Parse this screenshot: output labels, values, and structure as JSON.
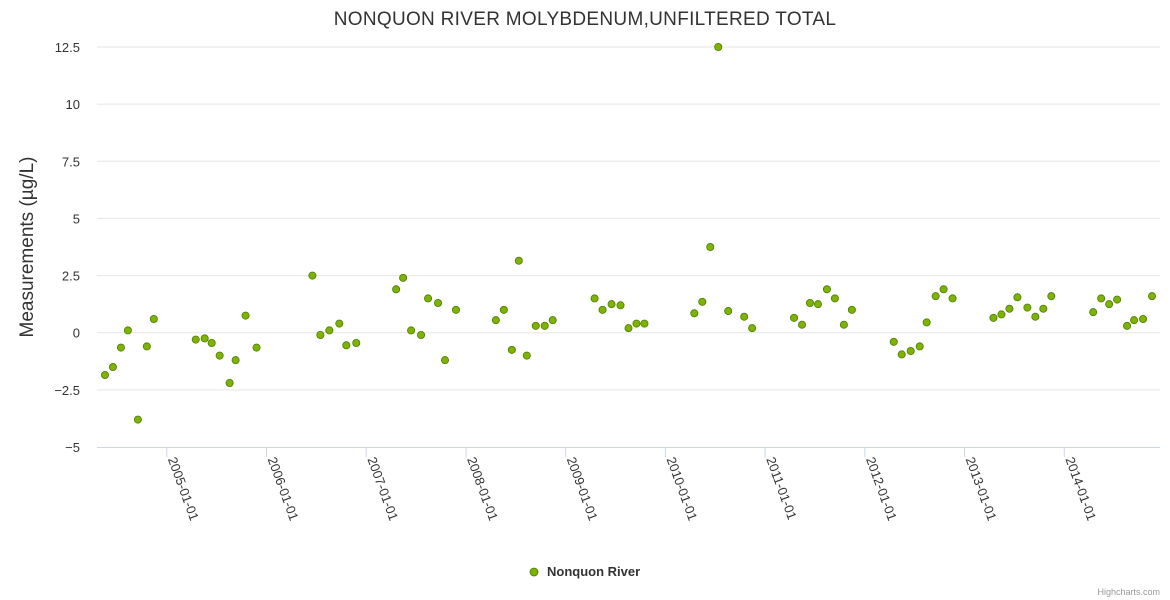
{
  "chart_data": {
    "type": "scatter",
    "title": "NONQUON RIVER MOLYBDENUM,UNFILTERED TOTAL",
    "xlabel": "",
    "ylabel": "Measurements (µg/L)",
    "ylim": [
      -5,
      12.5
    ],
    "yticks": [
      -5,
      -2.5,
      0,
      2.5,
      5,
      7.5,
      10,
      12.5
    ],
    "ytick_labels": [
      "−5",
      "−2.5",
      "0",
      "2.5",
      "5",
      "7.5",
      "10",
      "12.5"
    ],
    "xlim": [
      2004.3,
      2014.96
    ],
    "xticks": [
      2005,
      2006,
      2007,
      2008,
      2009,
      2010,
      2011,
      2012,
      2013,
      2014
    ],
    "xtick_labels": [
      "2005-01-01",
      "2006-01-01",
      "2007-01-01",
      "2008-01-01",
      "2009-01-01",
      "2010-01-01",
      "2011-01-01",
      "2012-01-01",
      "2013-01-01",
      "2014-01-01"
    ],
    "grid": true,
    "legend_position": "bottom-center",
    "series": [
      {
        "name": "Nonquon River",
        "color": "#7cb305",
        "points": [
          [
            2004.38,
            -1.85
          ],
          [
            2004.46,
            -1.5
          ],
          [
            2004.54,
            -0.65
          ],
          [
            2004.61,
            0.1
          ],
          [
            2004.71,
            -3.8
          ],
          [
            2004.8,
            -0.6
          ],
          [
            2004.87,
            0.6
          ],
          [
            2005.29,
            -0.3
          ],
          [
            2005.38,
            -0.25
          ],
          [
            2005.45,
            -0.45
          ],
          [
            2005.53,
            -1.0
          ],
          [
            2005.63,
            -2.2
          ],
          [
            2005.69,
            -1.2
          ],
          [
            2005.79,
            0.75
          ],
          [
            2005.9,
            -0.65
          ],
          [
            2006.46,
            2.5
          ],
          [
            2006.54,
            -0.1
          ],
          [
            2006.63,
            0.1
          ],
          [
            2006.73,
            0.4
          ],
          [
            2006.8,
            -0.55
          ],
          [
            2006.9,
            -0.45
          ],
          [
            2007.3,
            1.9
          ],
          [
            2007.37,
            2.4
          ],
          [
            2007.45,
            0.1
          ],
          [
            2007.55,
            -0.1
          ],
          [
            2007.62,
            1.5
          ],
          [
            2007.72,
            1.3
          ],
          [
            2007.79,
            -1.2
          ],
          [
            2007.9,
            1.0
          ],
          [
            2008.3,
            0.55
          ],
          [
            2008.38,
            1.0
          ],
          [
            2008.46,
            -0.75
          ],
          [
            2008.53,
            3.15
          ],
          [
            2008.61,
            -1.0
          ],
          [
            2008.7,
            0.3
          ],
          [
            2008.79,
            0.3
          ],
          [
            2008.87,
            0.55
          ],
          [
            2009.29,
            1.5
          ],
          [
            2009.37,
            1.0
          ],
          [
            2009.46,
            1.25
          ],
          [
            2009.55,
            1.2
          ],
          [
            2009.63,
            0.2
          ],
          [
            2009.71,
            0.4
          ],
          [
            2009.79,
            0.4
          ],
          [
            2010.29,
            0.85
          ],
          [
            2010.37,
            1.35
          ],
          [
            2010.45,
            3.75
          ],
          [
            2010.53,
            12.5
          ],
          [
            2010.63,
            0.95
          ],
          [
            2010.79,
            0.7
          ],
          [
            2010.87,
            0.2
          ],
          [
            2011.29,
            0.65
          ],
          [
            2011.37,
            0.35
          ],
          [
            2011.45,
            1.3
          ],
          [
            2011.53,
            1.25
          ],
          [
            2011.62,
            1.9
          ],
          [
            2011.7,
            1.5
          ],
          [
            2011.79,
            0.35
          ],
          [
            2011.87,
            1.0
          ],
          [
            2012.29,
            -0.4
          ],
          [
            2012.37,
            -0.95
          ],
          [
            2012.46,
            -0.8
          ],
          [
            2012.55,
            -0.6
          ],
          [
            2012.62,
            0.45
          ],
          [
            2012.71,
            1.6
          ],
          [
            2012.79,
            1.9
          ],
          [
            2012.88,
            1.5
          ],
          [
            2013.29,
            0.65
          ],
          [
            2013.37,
            0.8
          ],
          [
            2013.45,
            1.05
          ],
          [
            2013.53,
            1.55
          ],
          [
            2013.63,
            1.1
          ],
          [
            2013.71,
            0.7
          ],
          [
            2013.79,
            1.05
          ],
          [
            2013.87,
            1.6
          ],
          [
            2014.29,
            0.9
          ],
          [
            2014.37,
            1.5
          ],
          [
            2014.45,
            1.25
          ],
          [
            2014.53,
            1.45
          ],
          [
            2014.63,
            0.3
          ],
          [
            2014.7,
            0.55
          ],
          [
            2014.79,
            0.6
          ],
          [
            2014.88,
            1.6
          ]
        ]
      }
    ]
  },
  "credits": "Highcharts.com"
}
